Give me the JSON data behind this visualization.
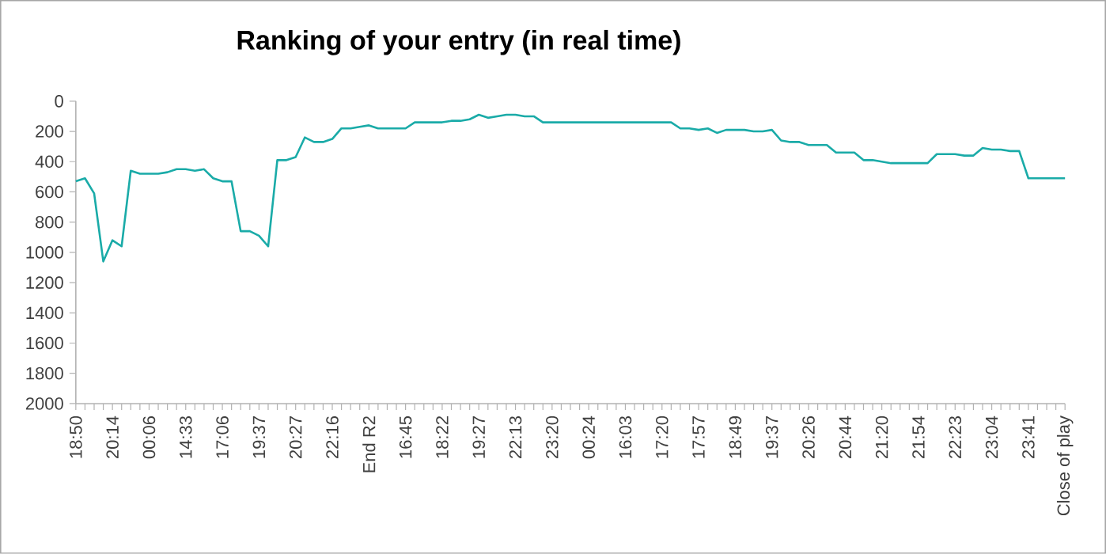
{
  "chart_data": {
    "type": "line",
    "title": "Ranking of your entry (in real time)",
    "categories": [
      "18:50",
      null,
      null,
      null,
      "20:14",
      null,
      null,
      null,
      "00:06",
      null,
      null,
      null,
      "14:33",
      null,
      null,
      null,
      "17:06",
      null,
      null,
      null,
      "19:37",
      null,
      null,
      null,
      "20:27",
      null,
      null,
      null,
      "22:16",
      null,
      null,
      null,
      "End R2",
      null,
      null,
      null,
      "16:45",
      null,
      null,
      null,
      "18:22",
      null,
      null,
      null,
      "19:27",
      null,
      null,
      null,
      "22:13",
      null,
      null,
      null,
      "23:20",
      null,
      null,
      null,
      "00:24",
      null,
      null,
      null,
      "16:03",
      null,
      null,
      null,
      "17:20",
      null,
      null,
      null,
      "17:57",
      null,
      null,
      null,
      "18:49",
      null,
      null,
      null,
      "19:37",
      null,
      null,
      null,
      "20:26",
      null,
      null,
      null,
      "20:44",
      null,
      null,
      null,
      "21:20",
      null,
      null,
      null,
      "21:54",
      null,
      null,
      null,
      "22:23",
      null,
      null,
      null,
      "23:04",
      null,
      null,
      null,
      "23:41",
      null,
      null,
      null,
      "Close of play"
    ],
    "values": [
      530,
      510,
      610,
      1060,
      920,
      960,
      460,
      480,
      480,
      480,
      470,
      450,
      450,
      460,
      450,
      510,
      530,
      530,
      860,
      860,
      890,
      960,
      390,
      390,
      370,
      240,
      270,
      270,
      250,
      180,
      180,
      170,
      160,
      180,
      180,
      180,
      180,
      140,
      140,
      140,
      140,
      130,
      130,
      120,
      90,
      110,
      100,
      90,
      90,
      100,
      100,
      140,
      140,
      140,
      140,
      140,
      140,
      140,
      140,
      140,
      140,
      140,
      140,
      140,
      140,
      140,
      180,
      180,
      190,
      180,
      210,
      190,
      190,
      190,
      200,
      200,
      190,
      260,
      270,
      270,
      290,
      290,
      290,
      340,
      340,
      340,
      390,
      390,
      400,
      410,
      410,
      410,
      410,
      410,
      350,
      350,
      350,
      360,
      360,
      310,
      320,
      320,
      330,
      330,
      510,
      510,
      510,
      510,
      510
    ],
    "color": "#1aaba8",
    "ylim": [
      2000,
      0
    ],
    "yticks": [
      0,
      200,
      400,
      600,
      800,
      1000,
      1200,
      1400,
      1600,
      1800,
      2000
    ],
    "marker": "none",
    "line_style": "solid"
  }
}
